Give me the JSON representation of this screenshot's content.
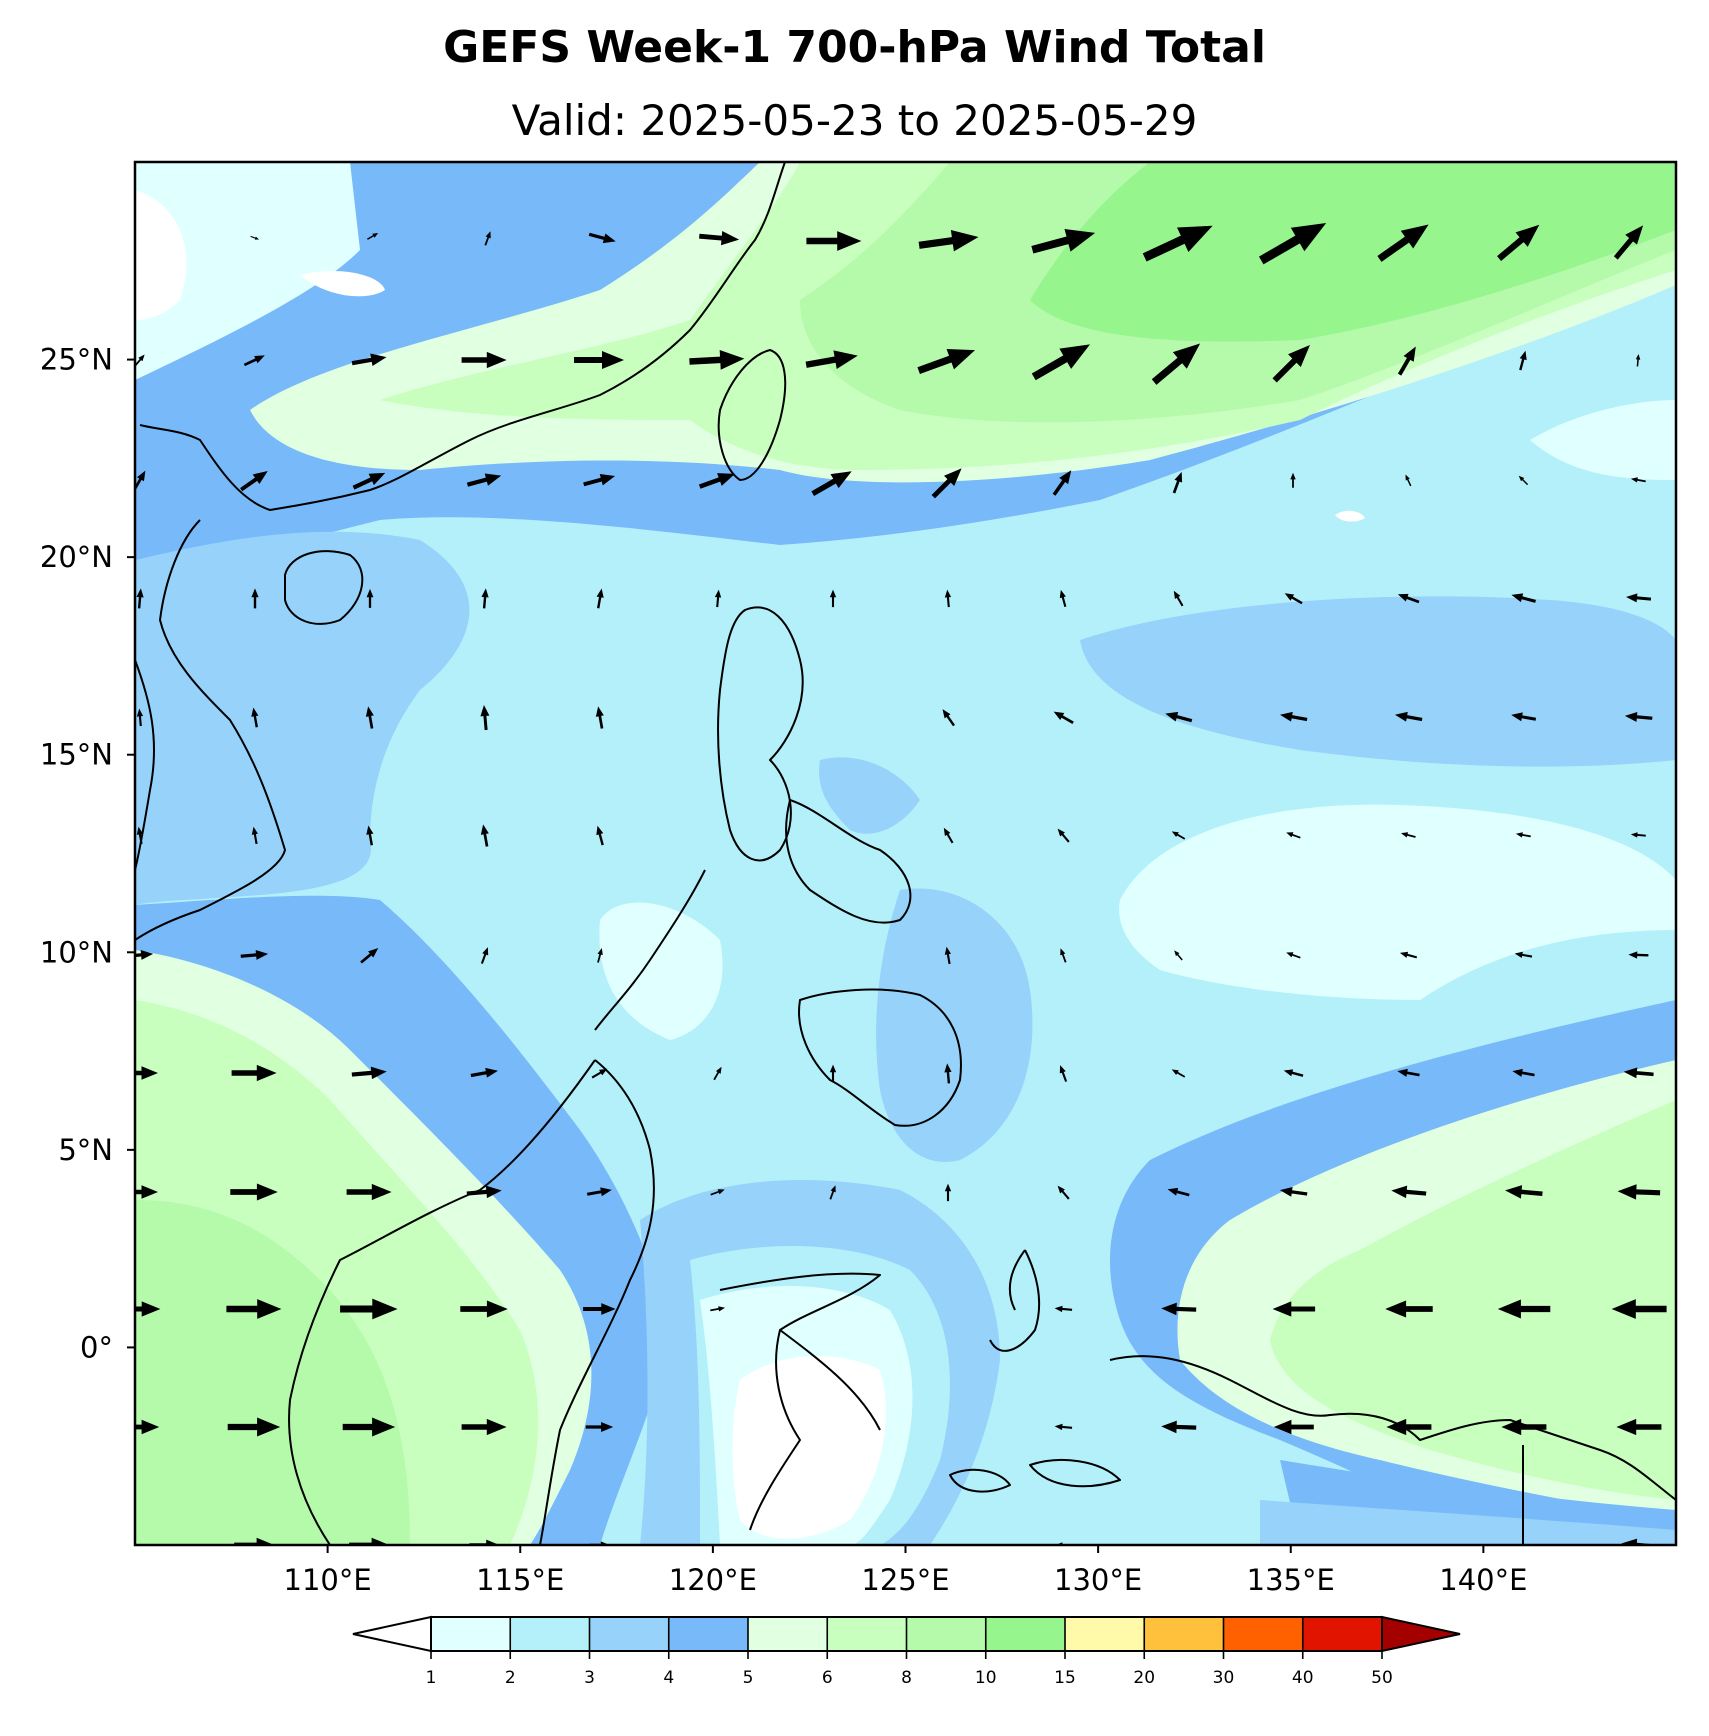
{
  "title": "GEFS Week-1 700-hPa Wind Total",
  "subtitle": "Valid: 2025-05-23 to 2025-05-29",
  "map": {
    "lon_range": [
      105.0,
      145.0
    ],
    "lat_range": [
      -5.0,
      30.0
    ],
    "lon_ticks": [
      {
        "value": 110,
        "label": "110°E"
      },
      {
        "value": 115,
        "label": "115°E"
      },
      {
        "value": 120,
        "label": "120°E"
      },
      {
        "value": 125,
        "label": "125°E"
      },
      {
        "value": 130,
        "label": "130°E"
      },
      {
        "value": 135,
        "label": "135°E"
      },
      {
        "value": 140,
        "label": "140°E"
      }
    ],
    "lat_ticks": [
      {
        "value": 25,
        "label": "25°N"
      },
      {
        "value": 20,
        "label": "20°N"
      },
      {
        "value": 15,
        "label": "15°N"
      },
      {
        "value": 10,
        "label": "10°N"
      },
      {
        "value": 5,
        "label": "5°N"
      },
      {
        "value": 0,
        "label": "0°"
      }
    ]
  },
  "colorbar": {
    "levels": [
      "1",
      "2",
      "3",
      "4",
      "5",
      "6",
      "8",
      "10",
      "15",
      "20",
      "30",
      "40",
      "50"
    ],
    "colors": [
      "#e0ffff",
      "#b4f0fa",
      "#96d2fa",
      "#78b9fa",
      "#e1ffe1",
      "#c8ffbe",
      "#b4faaa",
      "#97f58d",
      "#fffaaa",
      "#ffc03c",
      "#ff6000",
      "#e11400",
      "#a50000"
    ],
    "under_color": "#ffffff"
  },
  "colors": {
    "band_0_1": "#ffffff",
    "band_1_2": "#e0ffff",
    "band_2_3": "#b4f0fa",
    "band_3_4": "#96d2fa",
    "band_4_5": "#78b9fa",
    "band_5_6": "#e1ffe1",
    "band_6_8": "#c8ffbe",
    "band_8_10": "#b4faaa",
    "band_10_15": "#97f58d"
  }
}
